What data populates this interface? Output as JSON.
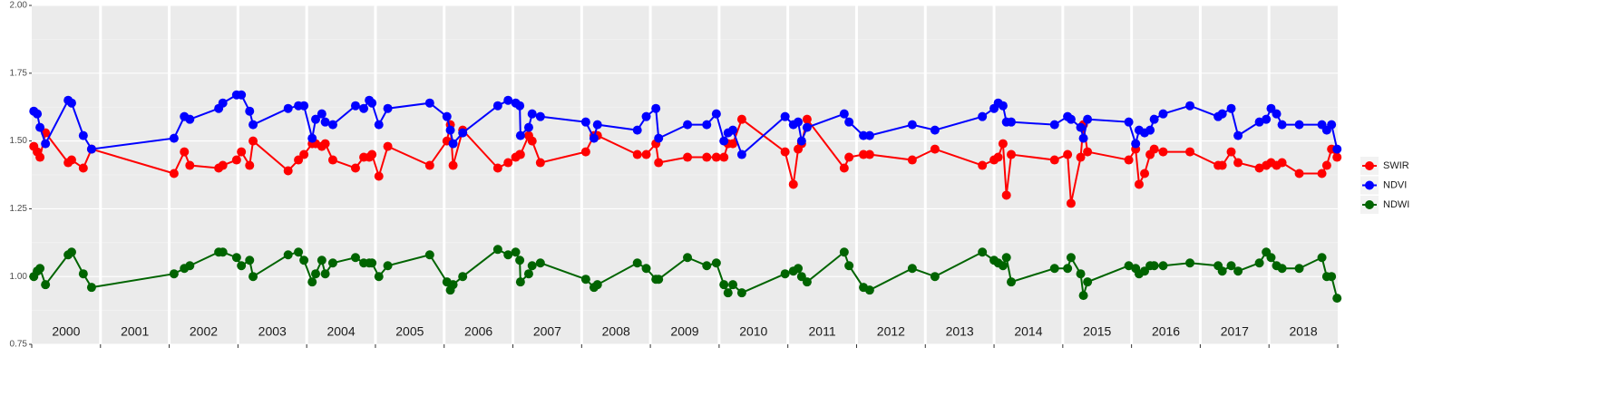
{
  "chart_data": {
    "type": "line",
    "x": [
      2000.03,
      2000.08,
      2000.12,
      2000.2,
      2000.53,
      2000.58,
      2000.75,
      2000.87,
      2002.07,
      2002.22,
      2002.3,
      2002.72,
      2002.78,
      2002.98,
      2003.05,
      2003.17,
      2003.22,
      2003.73,
      2003.88,
      2003.96,
      2004.08,
      2004.13,
      2004.22,
      2004.27,
      2004.38,
      2004.71,
      2004.83,
      2004.91,
      2004.95,
      2005.05,
      2005.18,
      2005.79,
      2006.04,
      2006.09,
      2006.13,
      2006.27,
      2006.78,
      2006.93,
      2007.04,
      2007.1,
      2007.11,
      2007.23,
      2007.28,
      2007.4,
      2008.06,
      2008.18,
      2008.23,
      2008.81,
      2008.94,
      2009.08,
      2009.12,
      2009.54,
      2009.82,
      2009.96,
      2010.07,
      2010.13,
      2010.2,
      2010.33,
      2010.96,
      2011.08,
      2011.15,
      2011.2,
      2011.28,
      2011.82,
      2011.89,
      2012.1,
      2012.19,
      2012.81,
      2013.14,
      2013.83,
      2014.0,
      2014.06,
      2014.13,
      2014.18,
      2014.25,
      2014.88,
      2015.07,
      2015.12,
      2015.26,
      2015.3,
      2015.36,
      2015.96,
      2016.06,
      2016.11,
      2016.19,
      2016.27,
      2016.33,
      2016.46,
      2016.85,
      2017.26,
      2017.32,
      2017.45,
      2017.55,
      2017.86,
      2017.96,
      2018.03,
      2018.11,
      2018.19,
      2018.44,
      2018.77,
      2018.84,
      2018.91,
      2018.99
    ],
    "series": [
      {
        "name": "SWIR",
        "color": "#ff0000",
        "values": [
          1.48,
          1.46,
          1.44,
          1.53,
          1.42,
          1.43,
          1.4,
          1.47,
          1.38,
          1.46,
          1.41,
          1.4,
          1.41,
          1.43,
          1.46,
          1.41,
          1.5,
          1.39,
          1.43,
          1.45,
          1.49,
          1.49,
          1.48,
          1.49,
          1.43,
          1.4,
          1.44,
          1.44,
          1.45,
          1.37,
          1.48,
          1.41,
          1.5,
          1.56,
          1.41,
          1.54,
          1.4,
          1.42,
          1.44,
          1.45,
          1.45,
          1.52,
          1.5,
          1.42,
          1.46,
          1.52,
          1.52,
          1.45,
          1.45,
          1.49,
          1.42,
          1.44,
          1.44,
          1.44,
          1.44,
          1.49,
          1.49,
          1.58,
          1.46,
          1.34,
          1.47,
          1.49,
          1.58,
          1.4,
          1.44,
          1.45,
          1.45,
          1.43,
          1.47,
          1.41,
          1.43,
          1.44,
          1.49,
          1.3,
          1.45,
          1.43,
          1.45,
          1.27,
          1.44,
          1.56,
          1.46,
          1.43,
          1.47,
          1.34,
          1.38,
          1.45,
          1.47,
          1.46,
          1.46,
          1.41,
          1.41,
          1.46,
          1.42,
          1.4,
          1.41,
          1.42,
          1.41,
          1.42,
          1.38,
          1.38,
          1.41,
          1.47,
          1.44
        ]
      },
      {
        "name": "NDVI",
        "color": "#0000ff",
        "values": [
          1.61,
          1.6,
          1.55,
          1.49,
          1.65,
          1.64,
          1.52,
          1.47,
          1.51,
          1.59,
          1.58,
          1.62,
          1.64,
          1.67,
          1.67,
          1.61,
          1.56,
          1.62,
          1.63,
          1.63,
          1.51,
          1.58,
          1.6,
          1.57,
          1.56,
          1.63,
          1.62,
          1.65,
          1.64,
          1.56,
          1.62,
          1.64,
          1.59,
          1.54,
          1.49,
          1.53,
          1.63,
          1.65,
          1.64,
          1.63,
          1.52,
          1.55,
          1.6,
          1.59,
          1.57,
          1.51,
          1.56,
          1.54,
          1.59,
          1.62,
          1.51,
          1.56,
          1.56,
          1.6,
          1.5,
          1.53,
          1.54,
          1.45,
          1.59,
          1.56,
          1.57,
          1.5,
          1.55,
          1.6,
          1.57,
          1.52,
          1.52,
          1.56,
          1.54,
          1.59,
          1.62,
          1.64,
          1.63,
          1.57,
          1.57,
          1.56,
          1.59,
          1.58,
          1.55,
          1.51,
          1.58,
          1.57,
          1.49,
          1.54,
          1.53,
          1.54,
          1.58,
          1.6,
          1.63,
          1.59,
          1.6,
          1.62,
          1.52,
          1.57,
          1.58,
          1.62,
          1.6,
          1.56,
          1.56,
          1.56,
          1.54,
          1.56,
          1.47
        ]
      },
      {
        "name": "NDWI",
        "color": "#006400",
        "values": [
          1.0,
          1.02,
          1.03,
          0.97,
          1.08,
          1.09,
          1.01,
          0.96,
          1.01,
          1.03,
          1.04,
          1.09,
          1.09,
          1.07,
          1.04,
          1.06,
          1.0,
          1.08,
          1.09,
          1.06,
          0.98,
          1.01,
          1.06,
          1.01,
          1.05,
          1.07,
          1.05,
          1.05,
          1.05,
          1.0,
          1.04,
          1.08,
          0.98,
          0.95,
          0.97,
          1.0,
          1.1,
          1.08,
          1.09,
          1.06,
          0.98,
          1.01,
          1.04,
          1.05,
          0.99,
          0.96,
          0.97,
          1.05,
          1.03,
          0.99,
          0.99,
          1.07,
          1.04,
          1.05,
          0.97,
          0.94,
          0.97,
          0.94,
          1.01,
          1.02,
          1.03,
          1.0,
          0.98,
          1.09,
          1.04,
          0.96,
          0.95,
          1.03,
          1.0,
          1.09,
          1.06,
          1.05,
          1.04,
          1.07,
          0.98,
          1.03,
          1.03,
          1.07,
          1.01,
          0.93,
          0.98,
          1.04,
          1.03,
          1.01,
          1.02,
          1.04,
          1.04,
          1.04,
          1.05,
          1.04,
          1.02,
          1.04,
          1.02,
          1.05,
          1.09,
          1.07,
          1.04,
          1.03,
          1.03,
          1.07,
          1.0,
          1.0,
          0.92
        ]
      }
    ],
    "xlim": [
      2000,
      2019
    ],
    "xticks": [
      2000,
      2001,
      2002,
      2003,
      2004,
      2005,
      2006,
      2007,
      2008,
      2009,
      2010,
      2011,
      2012,
      2013,
      2014,
      2015,
      2016,
      2017,
      2018,
      2019
    ],
    "panel_labels": [
      2000,
      2001,
      2002,
      2003,
      2004,
      2005,
      2006,
      2007,
      2008,
      2009,
      2010,
      2011,
      2012,
      2013,
      2014,
      2015,
      2016,
      2017,
      2018
    ],
    "ylim": [
      0.75,
      2.0
    ],
    "yticks": [
      0.75,
      {
        "value": 1,
        "label": "1.00"
      },
      1.25,
      {
        "value": 1.5,
        "label": "1.50"
      },
      1.75,
      {
        "value": 2,
        "label": "2.00"
      }
    ],
    "grid": true,
    "legend": "right"
  }
}
